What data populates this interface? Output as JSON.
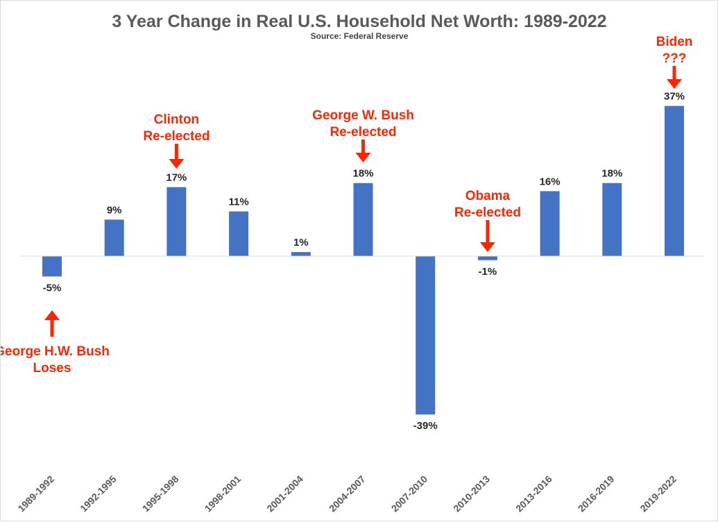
{
  "chart_data": {
    "type": "bar",
    "title": "3 Year Change in Real U.S. Household Net Worth: 1989-2022",
    "subtitle": "Source: Federal Reserve",
    "categories": [
      "1989-1992",
      "1992-1995",
      "1995-1998",
      "1998-2001",
      "2001-2004",
      "2004-2007",
      "2007-2010",
      "2010-2013",
      "2013-2016",
      "2016-2019",
      "2019-2022"
    ],
    "values": [
      -5,
      9,
      17,
      11,
      1,
      18,
      -39,
      -1,
      16,
      18,
      37
    ],
    "data_labels": [
      "-5%",
      "9%",
      "17%",
      "11%",
      "1%",
      "18%",
      "-39%",
      "-1%",
      "16%",
      "18%",
      "37%"
    ],
    "ylim": [
      -50,
      50
    ],
    "grid": false,
    "legend": "none",
    "bar_color": "#4472c4",
    "annotations": [
      {
        "category_index": 0,
        "lines": [
          "George H.W. Bush",
          "Loses"
        ],
        "position": "below",
        "color": "#ff2500"
      },
      {
        "category_index": 2,
        "lines": [
          "Clinton",
          "Re-elected"
        ],
        "position": "above",
        "color": "#ff2500"
      },
      {
        "category_index": 5,
        "lines": [
          "George W. Bush",
          "Re-elected"
        ],
        "position": "above",
        "color": "#ff2500"
      },
      {
        "category_index": 7,
        "lines": [
          "Obama",
          "Re-elected"
        ],
        "position": "above",
        "color": "#ff2500"
      },
      {
        "category_index": 10,
        "lines": [
          "Biden",
          "???"
        ],
        "position": "above",
        "color": "#ff2500"
      }
    ]
  }
}
